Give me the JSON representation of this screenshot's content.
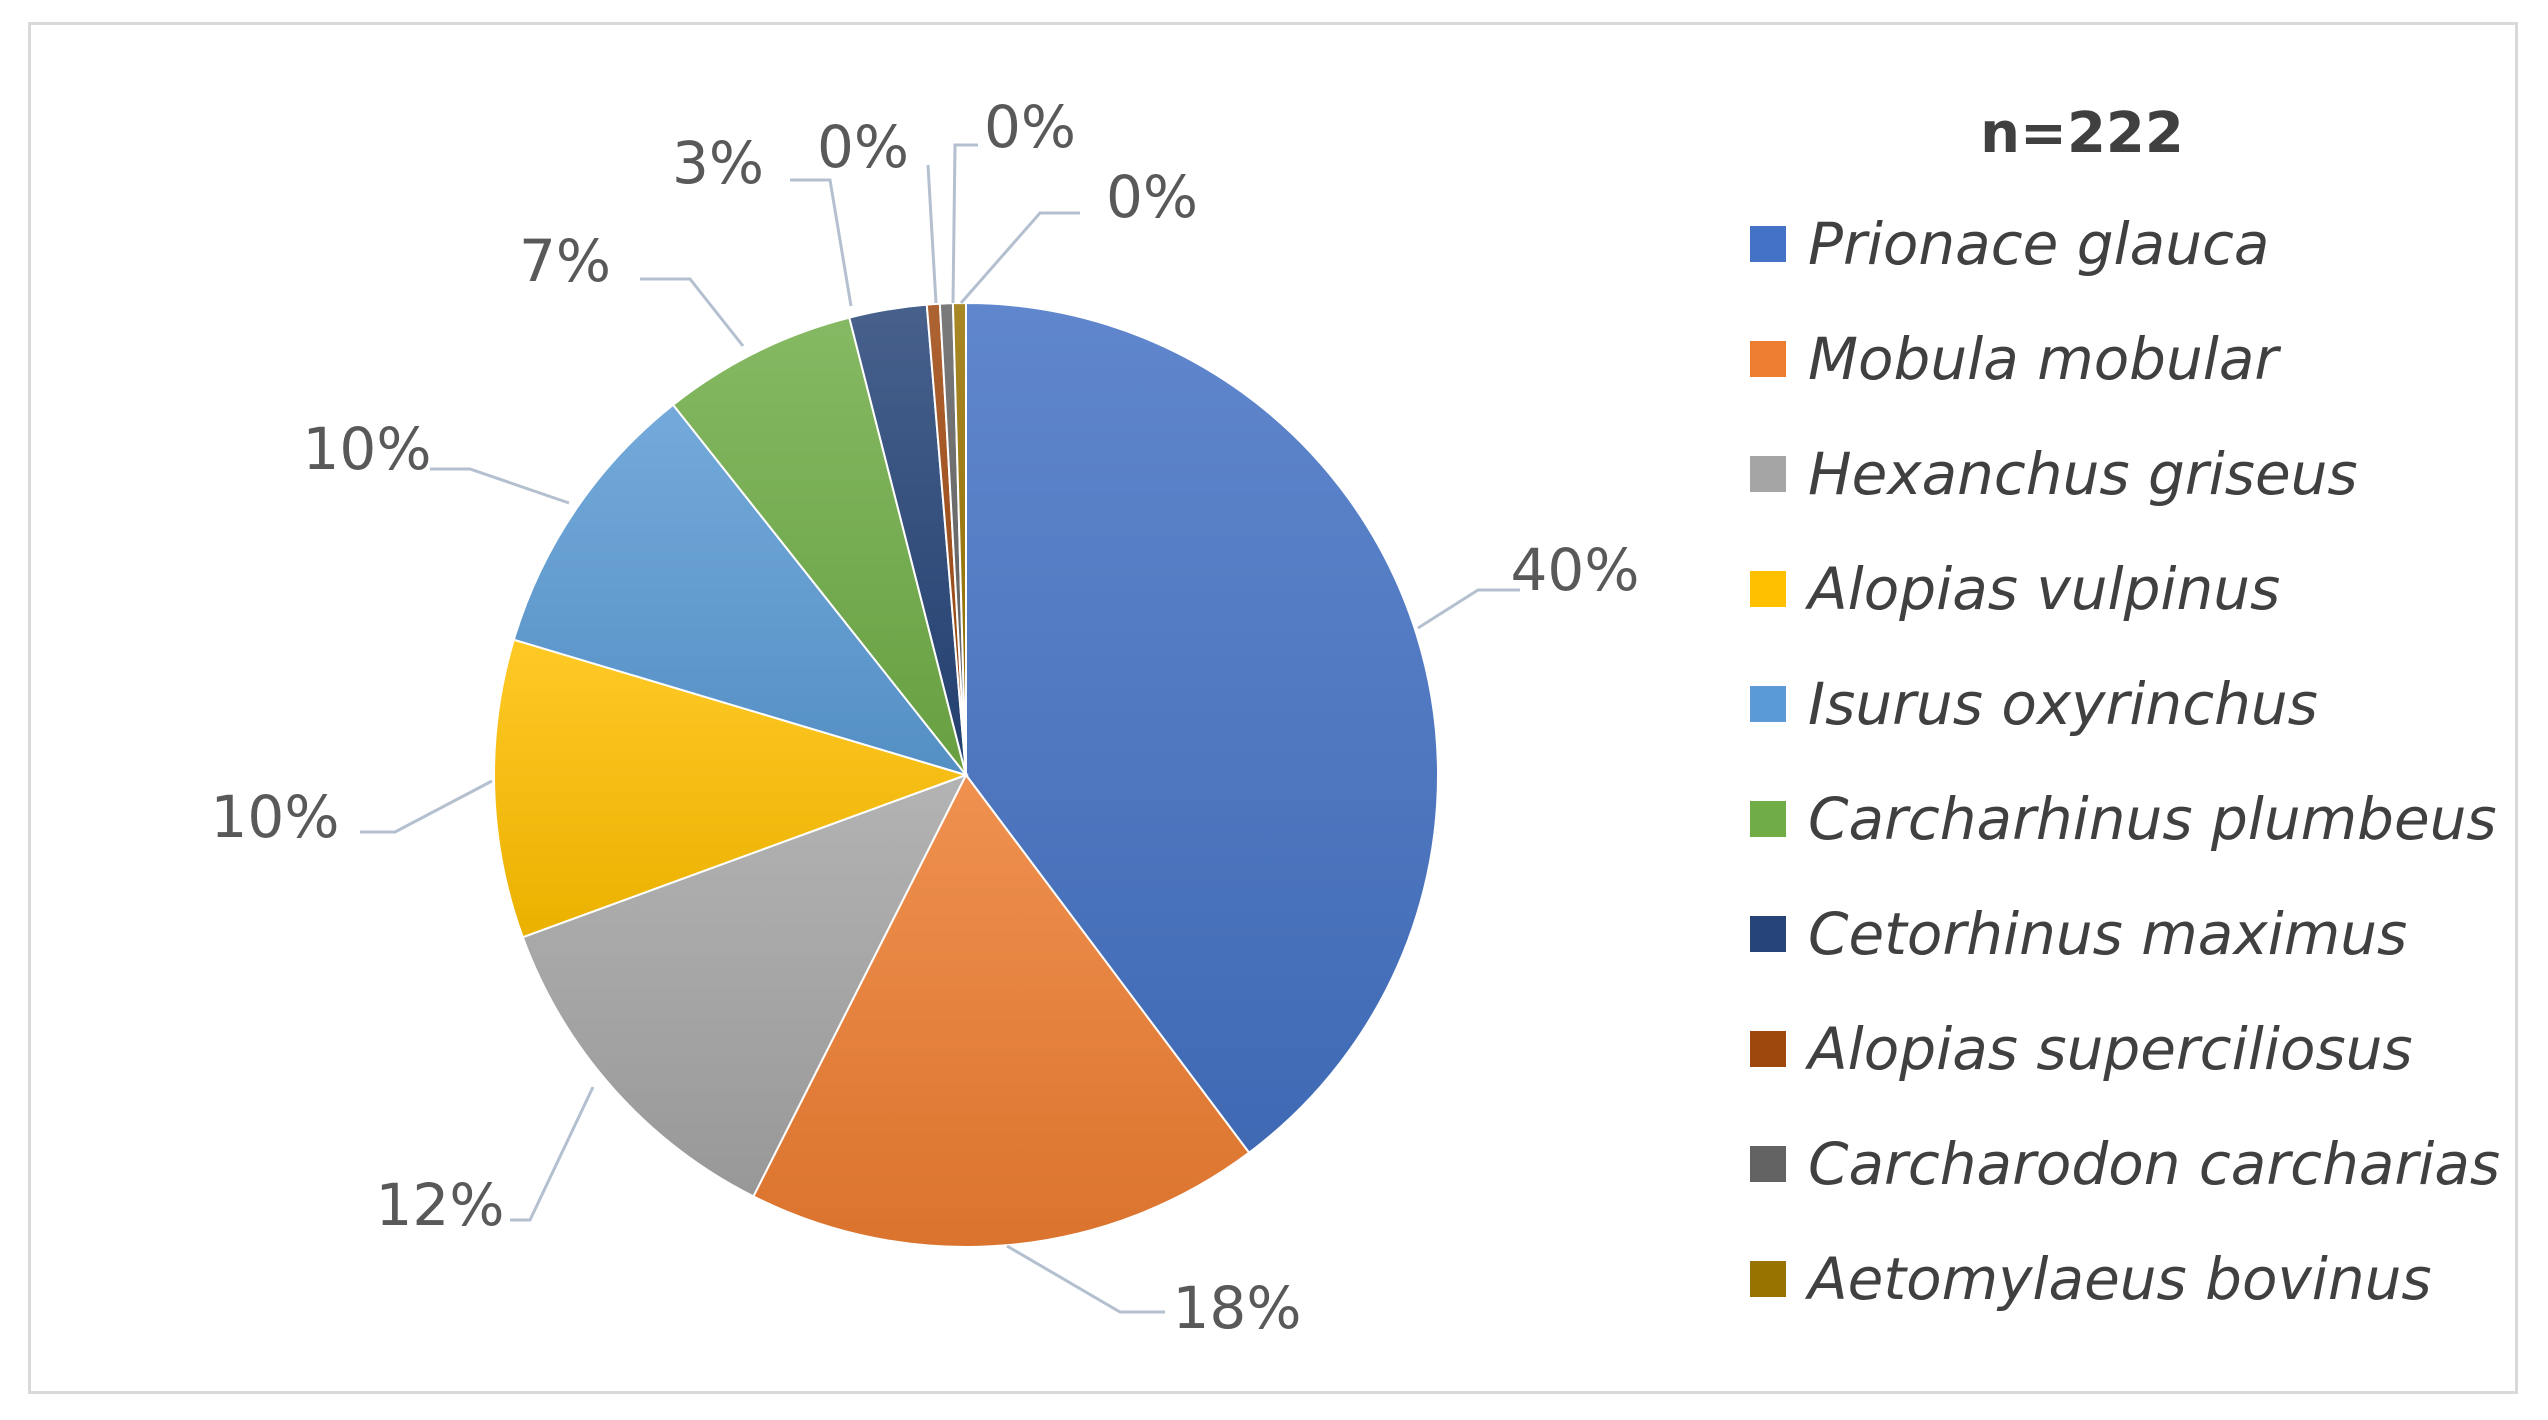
{
  "chart_data": {
    "type": "pie",
    "legend_title": "n=222",
    "legend_position": "right",
    "slices": [
      {
        "name": "Prionace glauca",
        "value": 40.5,
        "label": "40%",
        "color": "#4472c4"
      },
      {
        "name": "Mobula mobular",
        "value": 18.0,
        "label": "18%",
        "color": "#ed7d31"
      },
      {
        "name": "Hexanchus griseus",
        "value": 12.2,
        "label": "12%",
        "color": "#a5a5a5"
      },
      {
        "name": "Alopias vulpinus",
        "value": 10.4,
        "label": "10%",
        "color": "#ffc000"
      },
      {
        "name": "Isurus oxyrinchus",
        "value": 9.9,
        "label": "10%",
        "color": "#5b9bd5"
      },
      {
        "name": "Carcharhinus plumbeus",
        "value": 6.8,
        "label": "7%",
        "color": "#70ad47"
      },
      {
        "name": "Cetorhinus maximus",
        "value": 2.7,
        "label": "3%",
        "color": "#264478"
      },
      {
        "name": "Alopias superciliosus",
        "value": 0.45,
        "label": "0%",
        "color": "#9e480e"
      },
      {
        "name": "Carcharodon carcharias",
        "value": 0.45,
        "label": "0%",
        "color": "#636363"
      },
      {
        "name": "Aetomylaeus bovinus",
        "value": 0.45,
        "label": "0%",
        "color": "#997300"
      }
    ]
  }
}
